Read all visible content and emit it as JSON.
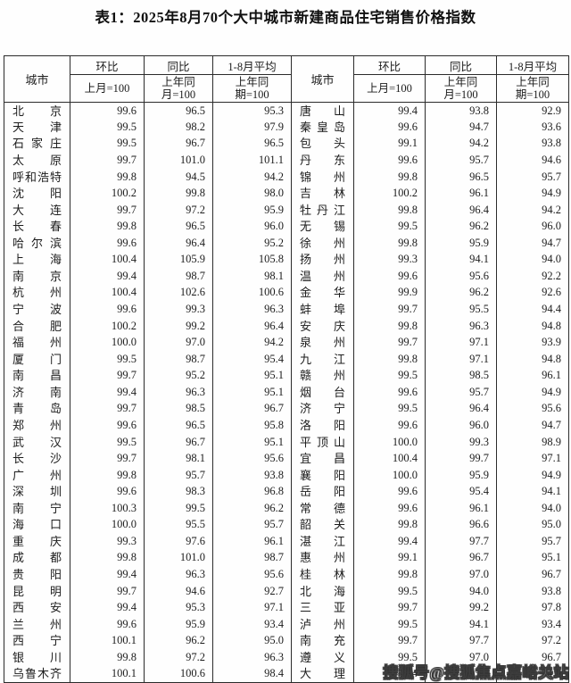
{
  "title": "表1：2025年8月70个大中城市新建商品住宅销售价格指数",
  "header": {
    "city": "城市",
    "mom": "环比",
    "mom_base": "上月=100",
    "yoy": "同比",
    "yoy_base": "上年同\n月=100",
    "avg": "1-8月平均",
    "avg_base": "上年同\n期=100"
  },
  "watermark": "搜狐号@搜狐焦点嘉峪关站",
  "left_rows": [
    {
      "city": "北京",
      "mom": "99.6",
      "yoy": "96.5",
      "avg": "95.3"
    },
    {
      "city": "天津",
      "mom": "99.5",
      "yoy": "98.2",
      "avg": "97.9"
    },
    {
      "city": "石家庄",
      "mom": "99.5",
      "yoy": "96.7",
      "avg": "96.5"
    },
    {
      "city": "太原",
      "mom": "99.7",
      "yoy": "101.0",
      "avg": "101.1"
    },
    {
      "city": "呼和浩特",
      "mom": "99.8",
      "yoy": "94.5",
      "avg": "94.2"
    },
    {
      "city": "沈阳",
      "mom": "100.2",
      "yoy": "99.8",
      "avg": "98.0"
    },
    {
      "city": "大连",
      "mom": "99.7",
      "yoy": "97.2",
      "avg": "95.9"
    },
    {
      "city": "长春",
      "mom": "99.8",
      "yoy": "96.5",
      "avg": "96.0"
    },
    {
      "city": "哈尔滨",
      "mom": "99.6",
      "yoy": "96.4",
      "avg": "95.2"
    },
    {
      "city": "上海",
      "mom": "100.4",
      "yoy": "105.9",
      "avg": "105.8"
    },
    {
      "city": "南京",
      "mom": "99.4",
      "yoy": "98.7",
      "avg": "98.1"
    },
    {
      "city": "杭州",
      "mom": "100.4",
      "yoy": "102.6",
      "avg": "100.6"
    },
    {
      "city": "宁波",
      "mom": "99.6",
      "yoy": "99.3",
      "avg": "96.3"
    },
    {
      "city": "合肥",
      "mom": "100.2",
      "yoy": "99.2",
      "avg": "96.4"
    },
    {
      "city": "福州",
      "mom": "100.0",
      "yoy": "97.0",
      "avg": "94.2"
    },
    {
      "city": "厦门",
      "mom": "99.5",
      "yoy": "98.7",
      "avg": "95.4"
    },
    {
      "city": "南昌",
      "mom": "99.7",
      "yoy": "95.2",
      "avg": "95.1"
    },
    {
      "city": "济南",
      "mom": "99.4",
      "yoy": "96.3",
      "avg": "95.1"
    },
    {
      "city": "青岛",
      "mom": "99.7",
      "yoy": "98.5",
      "avg": "96.7"
    },
    {
      "city": "郑州",
      "mom": "99.6",
      "yoy": "96.5",
      "avg": "95.8"
    },
    {
      "city": "武汉",
      "mom": "99.5",
      "yoy": "96.7",
      "avg": "95.1"
    },
    {
      "city": "长沙",
      "mom": "99.7",
      "yoy": "98.1",
      "avg": "95.6"
    },
    {
      "city": "广州",
      "mom": "99.8",
      "yoy": "95.7",
      "avg": "93.8"
    },
    {
      "city": "深圳",
      "mom": "99.6",
      "yoy": "98.3",
      "avg": "96.8"
    },
    {
      "city": "南宁",
      "mom": "100.3",
      "yoy": "99.5",
      "avg": "96.2"
    },
    {
      "city": "海口",
      "mom": "100.0",
      "yoy": "95.5",
      "avg": "95.7"
    },
    {
      "city": "重庆",
      "mom": "99.3",
      "yoy": "97.6",
      "avg": "96.1"
    },
    {
      "city": "成都",
      "mom": "99.8",
      "yoy": "101.0",
      "avg": "98.7"
    },
    {
      "city": "贵阳",
      "mom": "99.4",
      "yoy": "96.3",
      "avg": "95.6"
    },
    {
      "city": "昆明",
      "mom": "99.7",
      "yoy": "94.6",
      "avg": "92.7"
    },
    {
      "city": "西安",
      "mom": "99.4",
      "yoy": "95.3",
      "avg": "97.1"
    },
    {
      "city": "兰州",
      "mom": "99.6",
      "yoy": "95.9",
      "avg": "93.4"
    },
    {
      "city": "西宁",
      "mom": "100.1",
      "yoy": "96.2",
      "avg": "95.0"
    },
    {
      "city": "银川",
      "mom": "99.8",
      "yoy": "97.2",
      "avg": "96.3"
    },
    {
      "city": "乌鲁木齐",
      "mom": "100.1",
      "yoy": "100.6",
      "avg": "98.4"
    }
  ],
  "right_rows": [
    {
      "city": "唐山",
      "mom": "99.4",
      "yoy": "93.8",
      "avg": "92.9"
    },
    {
      "city": "秦皇岛",
      "mom": "99.6",
      "yoy": "94.7",
      "avg": "93.6"
    },
    {
      "city": "包头",
      "mom": "99.1",
      "yoy": "94.2",
      "avg": "93.8"
    },
    {
      "city": "丹东",
      "mom": "99.6",
      "yoy": "95.7",
      "avg": "94.6"
    },
    {
      "city": "锦州",
      "mom": "99.8",
      "yoy": "96.5",
      "avg": "95.7"
    },
    {
      "city": "吉林",
      "mom": "100.2",
      "yoy": "96.1",
      "avg": "94.9"
    },
    {
      "city": "牡丹江",
      "mom": "99.8",
      "yoy": "96.4",
      "avg": "94.2"
    },
    {
      "city": "无锡",
      "mom": "99.5",
      "yoy": "96.2",
      "avg": "96.0"
    },
    {
      "city": "徐州",
      "mom": "99.8",
      "yoy": "95.9",
      "avg": "94.7"
    },
    {
      "city": "扬州",
      "mom": "99.3",
      "yoy": "94.1",
      "avg": "94.0"
    },
    {
      "city": "温州",
      "mom": "99.6",
      "yoy": "95.6",
      "avg": "92.2"
    },
    {
      "city": "金华",
      "mom": "99.9",
      "yoy": "96.2",
      "avg": "92.6"
    },
    {
      "city": "蚌埠",
      "mom": "99.7",
      "yoy": "95.5",
      "avg": "94.4"
    },
    {
      "city": "安庆",
      "mom": "99.8",
      "yoy": "96.3",
      "avg": "94.8"
    },
    {
      "city": "泉州",
      "mom": "99.7",
      "yoy": "97.1",
      "avg": "93.9"
    },
    {
      "city": "九江",
      "mom": "99.8",
      "yoy": "97.1",
      "avg": "94.8"
    },
    {
      "city": "赣州",
      "mom": "99.5",
      "yoy": "98.5",
      "avg": "96.1"
    },
    {
      "city": "烟台",
      "mom": "99.6",
      "yoy": "95.7",
      "avg": "94.9"
    },
    {
      "city": "济宁",
      "mom": "99.5",
      "yoy": "96.4",
      "avg": "95.6"
    },
    {
      "city": "洛阳",
      "mom": "99.6",
      "yoy": "96.0",
      "avg": "94.7"
    },
    {
      "city": "平顶山",
      "mom": "100.0",
      "yoy": "99.3",
      "avg": "98.9"
    },
    {
      "city": "宜昌",
      "mom": "100.4",
      "yoy": "99.7",
      "avg": "97.1"
    },
    {
      "city": "襄阳",
      "mom": "100.0",
      "yoy": "95.9",
      "avg": "94.9"
    },
    {
      "city": "岳阳",
      "mom": "99.6",
      "yoy": "95.4",
      "avg": "94.1"
    },
    {
      "city": "常德",
      "mom": "99.6",
      "yoy": "96.1",
      "avg": "94.0"
    },
    {
      "city": "韶关",
      "mom": "99.8",
      "yoy": "96.6",
      "avg": "95.0"
    },
    {
      "city": "湛江",
      "mom": "99.4",
      "yoy": "97.7",
      "avg": "95.7"
    },
    {
      "city": "惠州",
      "mom": "99.1",
      "yoy": "96.7",
      "avg": "95.1"
    },
    {
      "city": "桂林",
      "mom": "99.8",
      "yoy": "97.0",
      "avg": "96.7"
    },
    {
      "city": "北海",
      "mom": "99.5",
      "yoy": "94.0",
      "avg": "93.8"
    },
    {
      "city": "三亚",
      "mom": "99.7",
      "yoy": "99.2",
      "avg": "97.8"
    },
    {
      "city": "泸州",
      "mom": "99.5",
      "yoy": "94.1",
      "avg": "93.4"
    },
    {
      "city": "南充",
      "mom": "99.7",
      "yoy": "97.7",
      "avg": "97.2"
    },
    {
      "city": "遵义",
      "mom": "99.5",
      "yoy": "97.0",
      "avg": "96.7"
    },
    {
      "city": "大理",
      "mom": "99.4",
      "yoy": "95.8",
      "avg": "94.0"
    }
  ]
}
